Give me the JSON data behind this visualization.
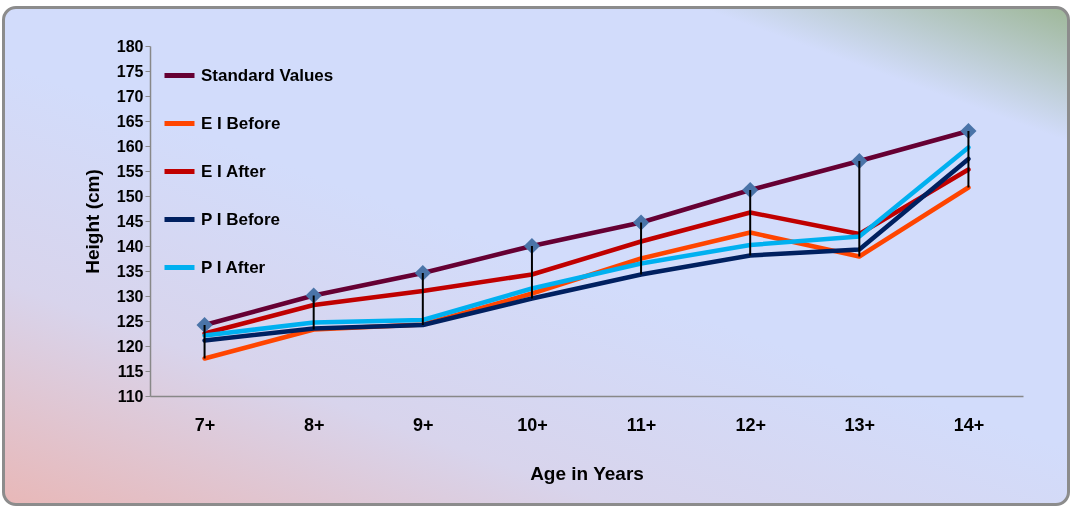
{
  "chart_data": {
    "type": "line",
    "xlabel": "Age in Years",
    "ylabel": "Height (cm)",
    "categories": [
      "7+",
      "8+",
      "9+",
      "10+",
      "11+",
      "12+",
      "13+",
      "14+"
    ],
    "ylim": [
      110,
      180
    ],
    "yticks": [
      110,
      115,
      120,
      125,
      130,
      135,
      140,
      145,
      150,
      155,
      160,
      165,
      170,
      175,
      180
    ],
    "grid": false,
    "legend": "top left",
    "line_style": "solid",
    "series": [
      {
        "name": "Standard Values",
        "color": "#660033",
        "marker": "diamond",
        "values": [
          124.2,
          130.1,
          134.6,
          140,
          144.7,
          151.2,
          157,
          163
        ],
        "errors": [
          [
            117.5,
            124.2
          ],
          [
            123.3,
            130.1
          ],
          [
            124.2,
            134.6
          ],
          [
            129.5,
            140
          ],
          [
            134.3,
            144.7
          ],
          [
            138.1,
            151.2
          ],
          [
            137.9,
            157
          ],
          [
            151.7,
            163
          ]
        ]
      },
      {
        "name": "E I Before",
        "color": "#ff4500",
        "values": [
          117.5,
          123.3,
          124.3,
          130.5,
          137.5,
          142.7,
          137.9,
          151.7
        ]
      },
      {
        "name": "E I After",
        "color": "#c00000",
        "values": [
          122.5,
          128.2,
          131,
          134.3,
          140.9,
          146.7,
          142.4,
          155.3
        ]
      },
      {
        "name": "P I Before",
        "color": "#002060",
        "values": [
          121.1,
          123.5,
          124.2,
          129.5,
          134.3,
          138.1,
          139.3,
          157.4
        ]
      },
      {
        "name": "P I After",
        "color": "#00b0f0",
        "values": [
          122.1,
          124.7,
          125.2,
          131.5,
          136.5,
          140.2,
          141.9,
          159.7
        ]
      }
    ]
  }
}
